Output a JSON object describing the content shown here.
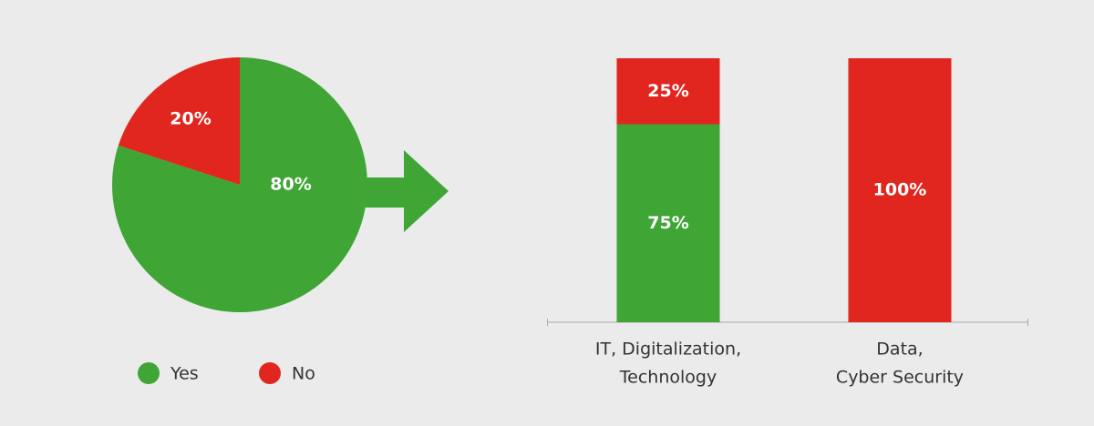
{
  "chart_data": [
    {
      "type": "pie",
      "categories": [
        "Yes",
        "No"
      ],
      "values": [
        80,
        20
      ],
      "value_labels": [
        "80%",
        "20%"
      ],
      "colors": [
        "#3fa535",
        "#e0261e"
      ],
      "legend": "bottom"
    },
    {
      "type": "stacked-bar",
      "categories": [
        [
          "IT, Digitalization,",
          "Technology"
        ],
        [
          "Data,",
          "Cyber Security"
        ]
      ],
      "series": [
        {
          "color": "#3fa535",
          "values": [
            75,
            null
          ],
          "value_labels": [
            "75%",
            null
          ]
        },
        {
          "color": "#e0261e",
          "values": [
            25,
            100
          ],
          "value_labels": [
            "25%",
            "100%"
          ]
        }
      ],
      "ylim": [
        0,
        100
      ]
    }
  ]
}
